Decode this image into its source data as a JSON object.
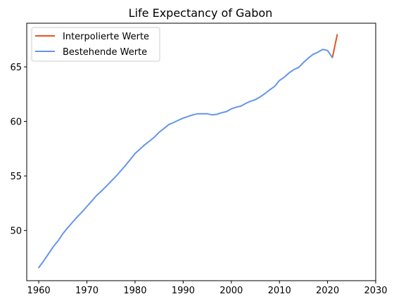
{
  "chart_data": {
    "type": "line",
    "title": "Life Expectancy of Gabon",
    "xlabel": "",
    "ylabel": "",
    "xlim": [
      1957.5,
      2030
    ],
    "ylim": [
      45.4,
      69.0
    ],
    "xticks": [
      1960,
      1970,
      1980,
      1990,
      2000,
      2010,
      2020,
      2030
    ],
    "yticks": [
      50,
      55,
      60,
      65
    ],
    "grid": false,
    "legend_position": "top-left",
    "series": [
      {
        "name": "Interpolierte Werte",
        "color": "#e8541e",
        "x": [
          2021,
          2022
        ],
        "y": [
          65.85,
          67.95
        ]
      },
      {
        "name": "Bestehende Werte",
        "color": "#6495ed",
        "x": [
          1960,
          1961,
          1962,
          1963,
          1964,
          1965,
          1966,
          1967,
          1968,
          1969,
          1970,
          1971,
          1972,
          1973,
          1974,
          1975,
          1976,
          1977,
          1978,
          1979,
          1980,
          1981,
          1982,
          1983,
          1984,
          1985,
          1986,
          1987,
          1988,
          1989,
          1990,
          1991,
          1992,
          1993,
          1994,
          1995,
          1996,
          1997,
          1998,
          1999,
          2000,
          2001,
          2002,
          2003,
          2004,
          2005,
          2006,
          2007,
          2008,
          2009,
          2010,
          2011,
          2012,
          2013,
          2014,
          2015,
          2016,
          2017,
          2018,
          2019,
          2020,
          2021
        ],
        "y": [
          46.6,
          47.2,
          47.85,
          48.5,
          49.05,
          49.7,
          50.25,
          50.75,
          51.25,
          51.7,
          52.2,
          52.7,
          53.2,
          53.6,
          54.05,
          54.5,
          54.95,
          55.45,
          55.95,
          56.5,
          57.05,
          57.45,
          57.85,
          58.2,
          58.55,
          59.0,
          59.35,
          59.7,
          59.9,
          60.1,
          60.3,
          60.45,
          60.6,
          60.7,
          60.7,
          60.7,
          60.6,
          60.65,
          60.8,
          60.9,
          61.15,
          61.3,
          61.4,
          61.65,
          61.85,
          62.0,
          62.25,
          62.55,
          62.9,
          63.2,
          63.75,
          64.05,
          64.45,
          64.75,
          64.95,
          65.4,
          65.8,
          66.15,
          66.35,
          66.6,
          66.5,
          65.85
        ]
      }
    ]
  }
}
